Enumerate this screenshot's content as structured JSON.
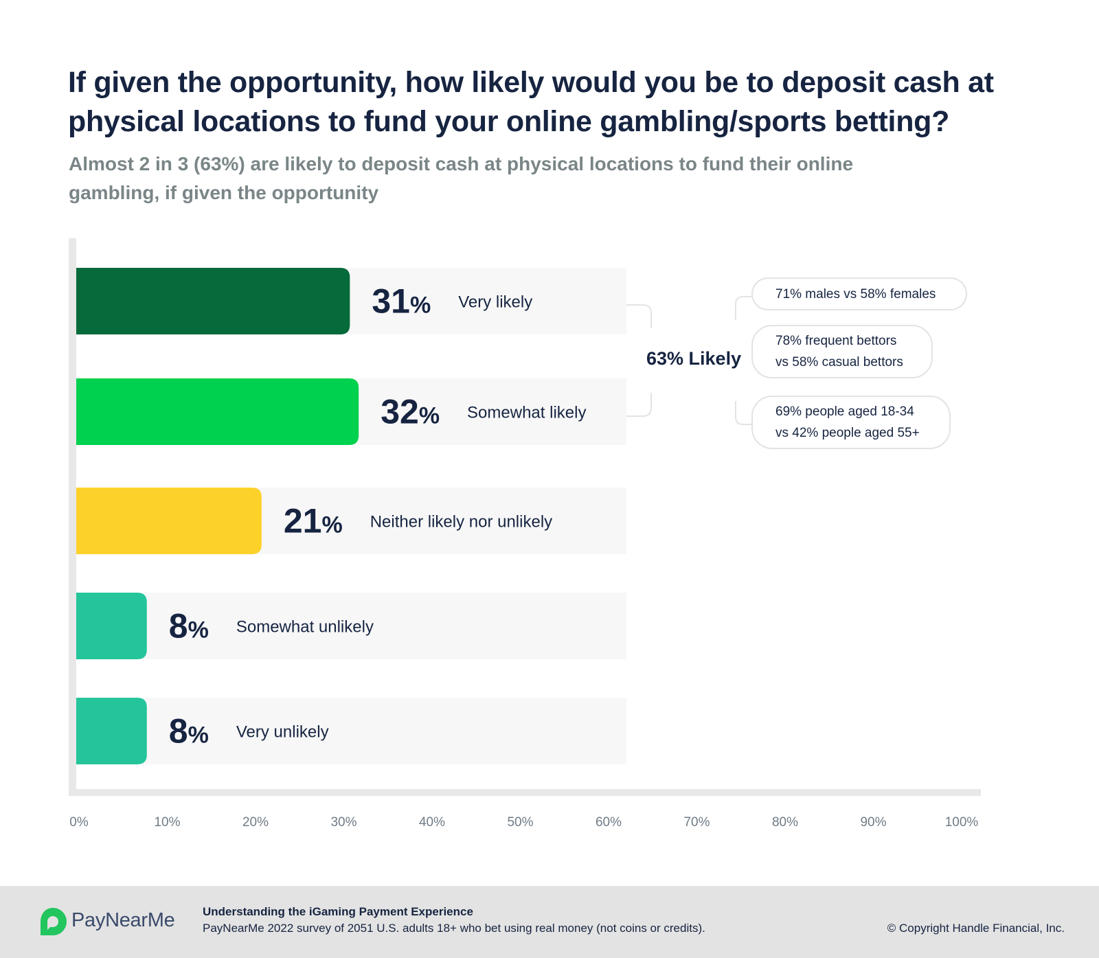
{
  "title": "If given the opportunity, how likely would you be to deposit cash at physical locations to fund your online gambling/sports betting?",
  "subtitle": "Almost 2 in 3 (63%) are likely to deposit cash at physical locations to fund their online gambling, if given the opportunity",
  "chart_data": {
    "type": "bar",
    "orientation": "horizontal",
    "categories": [
      "Very likely",
      "Somewhat likely",
      "Neither likely nor unlikely",
      "Somewhat unlikely",
      "Very unlikely"
    ],
    "values": [
      31,
      32,
      21,
      8,
      8
    ],
    "value_labels": [
      "31",
      "32",
      "21",
      "8",
      "8"
    ],
    "percent_sign": "%",
    "colors": [
      "#066a3a",
      "#00d14e",
      "#fcd22a",
      "#24c59b",
      "#24c59b"
    ],
    "track_color": "#f7f7f7",
    "axis_color": "#e8e8e8",
    "xlim": [
      0,
      100
    ],
    "x_ticks": [
      "0%",
      "10%",
      "20%",
      "30%",
      "40%",
      "50%",
      "60%",
      "70%",
      "80%",
      "90%",
      "100%"
    ],
    "xlabel": "",
    "ylabel": ""
  },
  "annotation": {
    "total_label": "63% Likely",
    "callouts": [
      {
        "line1": "71% males vs 58% females",
        "line2": ""
      },
      {
        "line1": "78% frequent bettors",
        "line2": "vs 58% casual bettors"
      },
      {
        "line1": "69% people aged 18-34",
        "line2": "vs 42% people aged 55+"
      }
    ]
  },
  "footer": {
    "brand": "PayNearMe",
    "report_title": "Understanding the iGaming Payment Experience",
    "report_desc": "PayNearMe 2022 survey of 2051 U.S. adults 18+ who bet using real money (not coins or credits).",
    "copyright": "© Copyright Handle Financial, Inc.",
    "brand_color": "#22c55e"
  }
}
